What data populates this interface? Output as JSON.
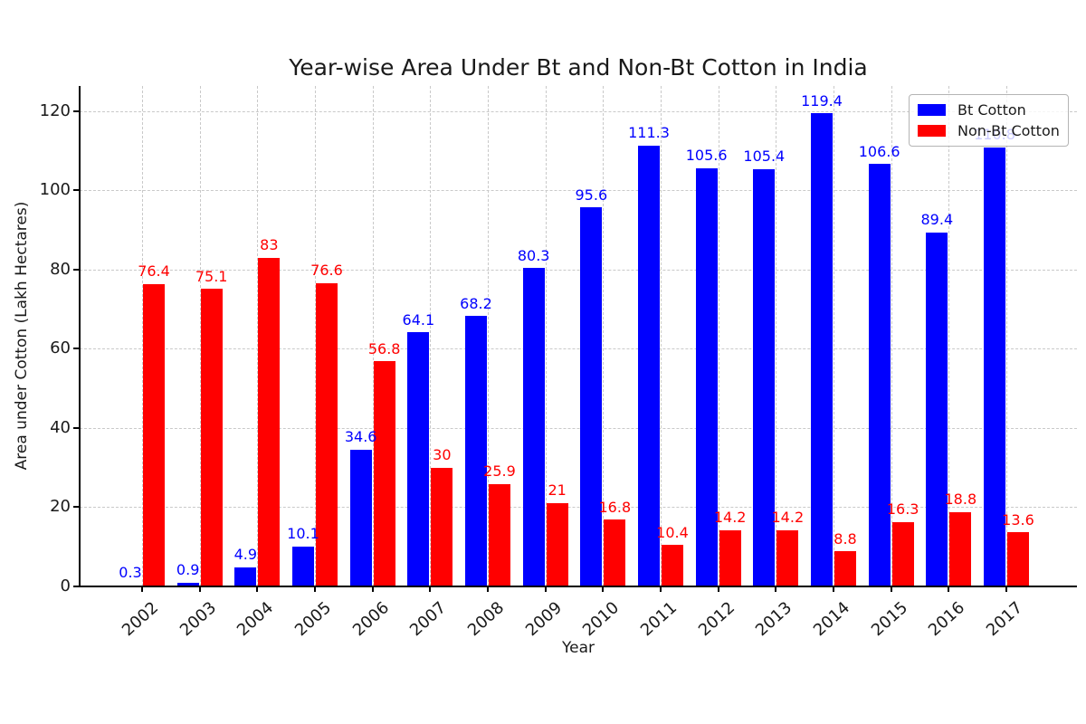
{
  "chart_data": {
    "type": "bar",
    "title": "Year-wise Area Under Bt and Non-Bt Cotton in India",
    "xlabel": "Year",
    "ylabel": "Area under Cotton (Lakh Hectares)",
    "categories": [
      "2002",
      "2003",
      "2004",
      "2005",
      "2006",
      "2007",
      "2008",
      "2009",
      "2010",
      "2011",
      "2012",
      "2013",
      "2014",
      "2015",
      "2016",
      "2017"
    ],
    "series": [
      {
        "name": "Bt Cotton",
        "color": "#0000ff",
        "values": [
          0.3,
          0.9,
          4.9,
          10.1,
          34.6,
          64.1,
          68.2,
          80.3,
          95.6,
          111.3,
          105.6,
          105.4,
          119.4,
          106.6,
          89.4,
          110.8
        ],
        "labels": [
          "0.3",
          "0.9",
          "4.9",
          "10.1",
          "34.6",
          "64.1",
          "68.2",
          "80.3",
          "95.6",
          "111.3",
          "105.6",
          "105.4",
          "119.4",
          "106.6",
          "89.4",
          "110.8"
        ]
      },
      {
        "name": "Non-Bt Cotton",
        "color": "#ff0000",
        "values": [
          76.4,
          75.1,
          83,
          76.6,
          56.8,
          30,
          25.9,
          21,
          16.8,
          10.4,
          14.2,
          14.2,
          8.8,
          16.3,
          18.8,
          13.6
        ],
        "labels": [
          "76.4",
          "75.1",
          "83",
          "76.6",
          "56.8",
          "30",
          "25.9",
          "21",
          "16.8",
          "10.4",
          "14.2",
          "14.2",
          "8.8",
          "16.3",
          "18.8",
          "13.6"
        ]
      }
    ],
    "yticks": [
      0,
      20,
      40,
      60,
      80,
      100,
      120
    ],
    "ytick_labels": [
      "0",
      "20",
      "40",
      "60",
      "80",
      "100",
      "120"
    ],
    "ylim": [
      0,
      126.3
    ],
    "grid": true,
    "grid_style": "dashed",
    "legend_position": "upper right",
    "bar_labels": true,
    "note": "2017 Bt Cotton bar label is partially covered by the legend box"
  },
  "legend": {
    "items": [
      {
        "label": "Bt Cotton",
        "color": "#0000ff"
      },
      {
        "label": "Non-Bt Cotton",
        "color": "#ff0000"
      }
    ]
  }
}
